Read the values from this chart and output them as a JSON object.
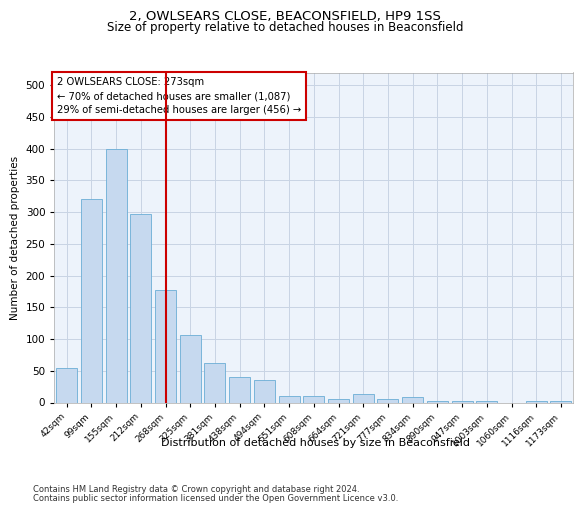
{
  "title1": "2, OWLSEARS CLOSE, BEACONSFIELD, HP9 1SS",
  "title2": "Size of property relative to detached houses in Beaconsfield",
  "xlabel": "Distribution of detached houses by size in Beaconsfield",
  "ylabel": "Number of detached properties",
  "categories": [
    "42sqm",
    "99sqm",
    "155sqm",
    "212sqm",
    "268sqm",
    "325sqm",
    "381sqm",
    "438sqm",
    "494sqm",
    "551sqm",
    "608sqm",
    "664sqm",
    "721sqm",
    "777sqm",
    "834sqm",
    "890sqm",
    "947sqm",
    "1003sqm",
    "1060sqm",
    "1116sqm",
    "1173sqm"
  ],
  "values": [
    55,
    320,
    400,
    297,
    178,
    107,
    63,
    40,
    35,
    10,
    10,
    5,
    13,
    5,
    8,
    3,
    3,
    2,
    0,
    2,
    3
  ],
  "bar_color": "#c6d9ef",
  "bar_edge_color": "#6baed6",
  "vline_x_idx": 4,
  "vline_color": "#cc0000",
  "annotation_line1": "2 OWLSEARS CLOSE: 273sqm",
  "annotation_line2": "← 70% of detached houses are smaller (1,087)",
  "annotation_line3": "29% of semi-detached houses are larger (456) →",
  "annotation_box_color": "#cc0000",
  "ylim": [
    0,
    520
  ],
  "yticks": [
    0,
    50,
    100,
    150,
    200,
    250,
    300,
    350,
    400,
    450,
    500
  ],
  "footer1": "Contains HM Land Registry data © Crown copyright and database right 2024.",
  "footer2": "Contains public sector information licensed under the Open Government Licence v3.0.",
  "bg_color": "#ffffff",
  "plot_bg_color": "#edf3fb",
  "grid_color": "#c8d4e4"
}
